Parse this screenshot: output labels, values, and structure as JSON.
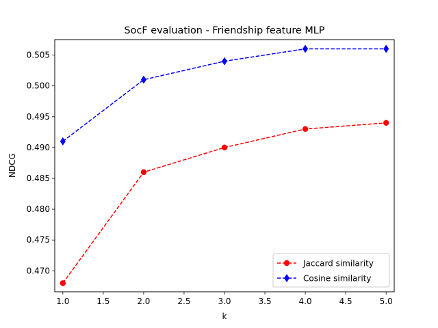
{
  "chart_data": {
    "type": "line",
    "title": "SocF evaluation - Friendship feature MLP",
    "xlabel": "k",
    "ylabel": "NDCG",
    "x": [
      1,
      2,
      3,
      4,
      5
    ],
    "xlim": [
      0.9,
      5.1
    ],
    "ylim": [
      0.4666,
      0.5075
    ],
    "xticks": [
      1.0,
      1.5,
      2.0,
      2.5,
      3.0,
      3.5,
      4.0,
      4.5,
      5.0
    ],
    "yticks": [
      0.47,
      0.475,
      0.48,
      0.485,
      0.49,
      0.495,
      0.5,
      0.505
    ],
    "xtick_labels": [
      "1.0",
      "1.5",
      "2.0",
      "2.5",
      "3.0",
      "3.5",
      "4.0",
      "4.5",
      "5.0"
    ],
    "ytick_labels": [
      "0.470",
      "0.475",
      "0.480",
      "0.485",
      "0.490",
      "0.495",
      "0.500",
      "0.505"
    ],
    "grid": false,
    "legend_position": "bottom-right",
    "series": [
      {
        "name": "Jaccard similarity",
        "values": [
          0.468,
          0.486,
          0.49,
          0.493,
          0.494
        ],
        "color": "#ff0000",
        "marker": "circle",
        "linestyle": "dashed"
      },
      {
        "name": "Cosine similarity",
        "values": [
          0.491,
          0.501,
          0.504,
          0.506,
          0.506
        ],
        "color": "#0000ff",
        "marker": "diamond",
        "linestyle": "dashed"
      }
    ]
  }
}
